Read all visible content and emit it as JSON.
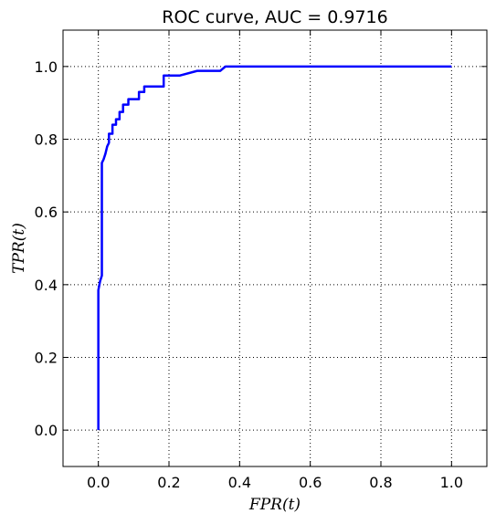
{
  "chart_data": {
    "type": "line",
    "title": "ROC curve, AUC = 0.9716",
    "xlabel": "FPR(t)",
    "ylabel": "TPR(t)",
    "xlim": [
      -0.1,
      1.1
    ],
    "ylim": [
      -0.1,
      1.1
    ],
    "xticks": [
      "0.0",
      "0.2",
      "0.4",
      "0.6",
      "0.8",
      "1.0"
    ],
    "yticks": [
      "0.0",
      "0.2",
      "0.4",
      "0.6",
      "0.8",
      "1.0"
    ],
    "grid": true,
    "grid_style": "dotted",
    "line_color": "#0000ff",
    "series": [
      {
        "x": [
          0.0,
          0.0,
          0.005,
          0.01,
          0.01,
          0.015,
          0.02,
          0.025,
          0.03,
          0.03,
          0.04,
          0.04,
          0.05,
          0.05,
          0.06,
          0.06,
          0.07,
          0.07,
          0.085,
          0.085,
          0.095,
          0.095,
          0.115,
          0.115,
          0.13,
          0.13,
          0.185,
          0.185,
          0.23,
          0.28,
          0.345,
          0.36,
          0.4,
          1.0
        ],
        "y": [
          0.0,
          0.385,
          0.41,
          0.425,
          0.735,
          0.745,
          0.76,
          0.78,
          0.79,
          0.815,
          0.815,
          0.84,
          0.84,
          0.855,
          0.855,
          0.875,
          0.875,
          0.895,
          0.895,
          0.91,
          0.91,
          0.91,
          0.91,
          0.93,
          0.93,
          0.945,
          0.945,
          0.975,
          0.975,
          0.988,
          0.988,
          1.0,
          1.0,
          1.0
        ]
      }
    ]
  }
}
